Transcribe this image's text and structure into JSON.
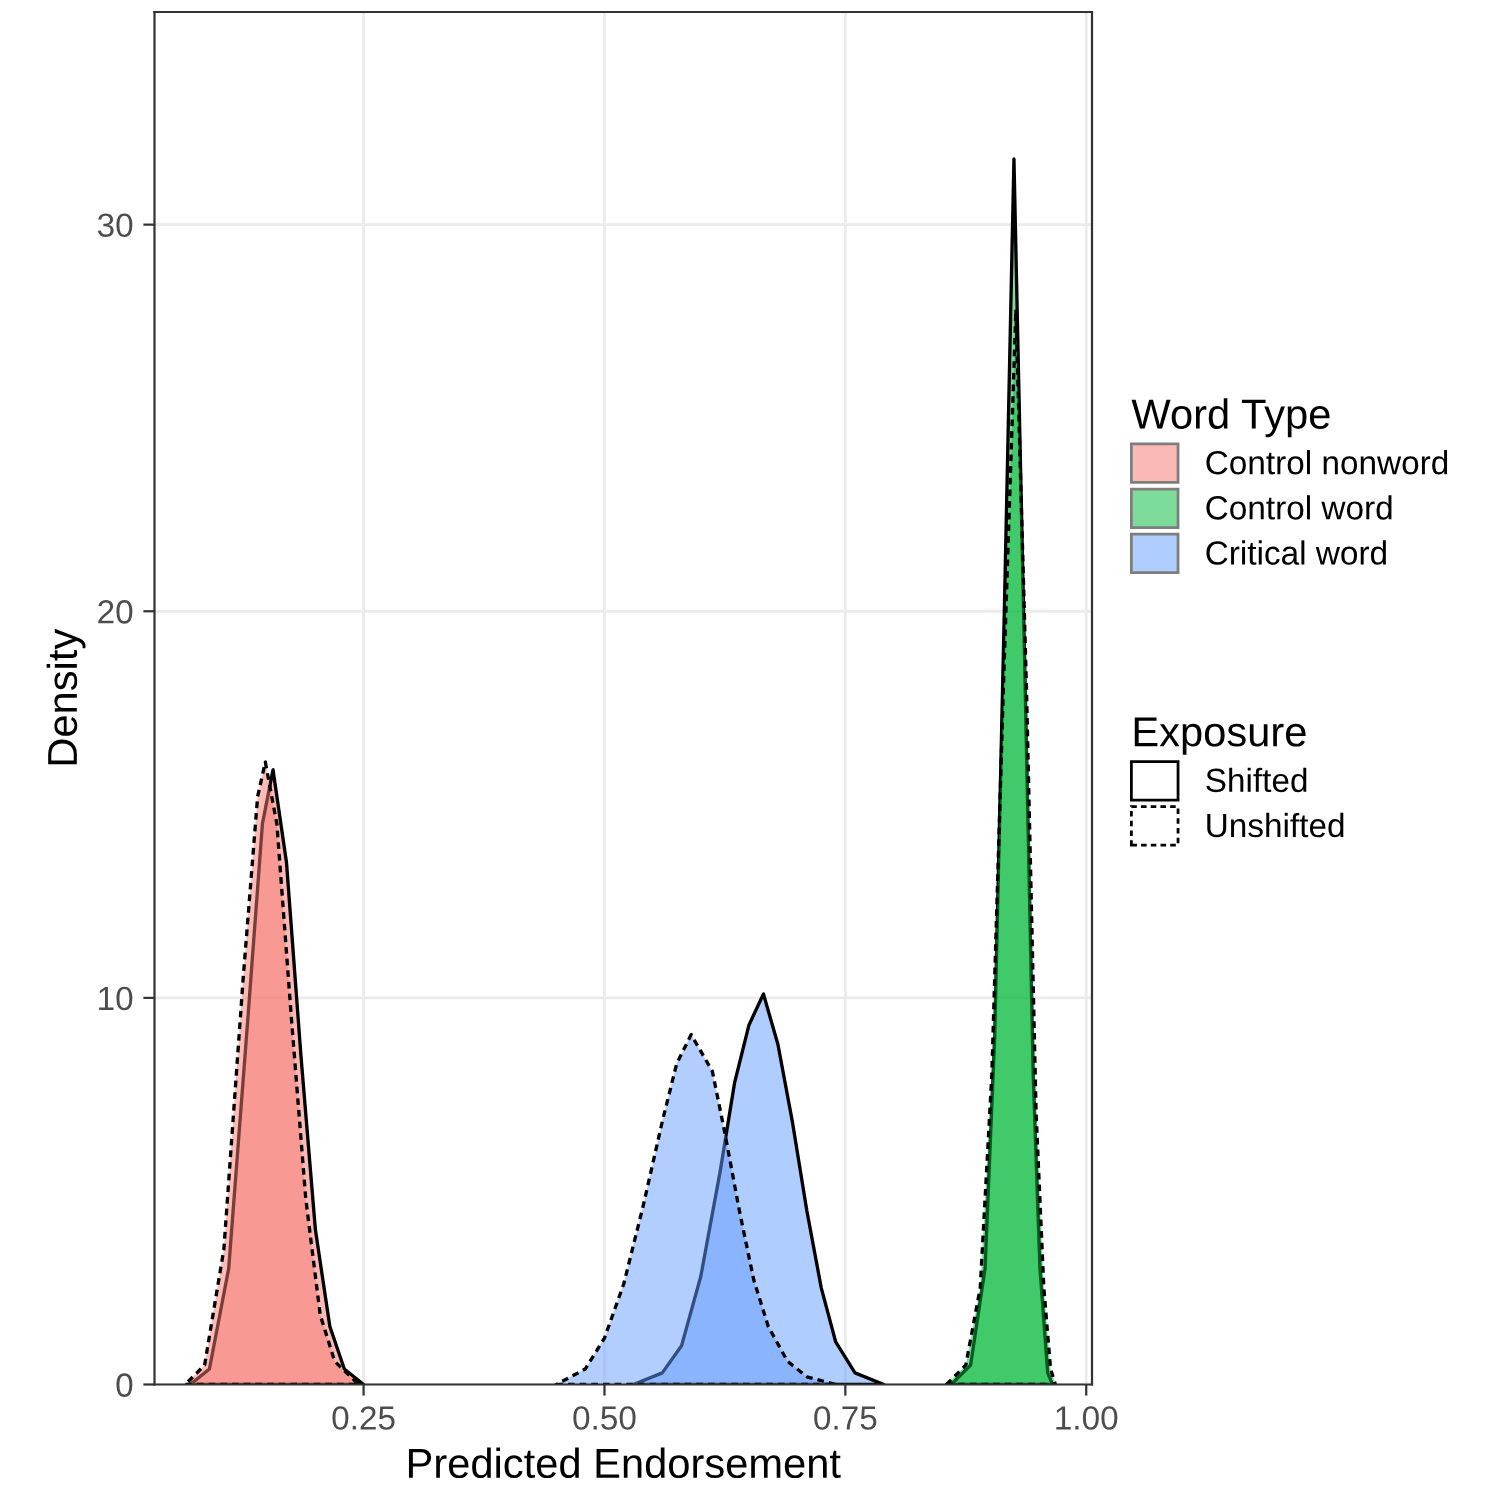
{
  "chart_data": {
    "type": "area",
    "xlabel": "Predicted Endorsement",
    "ylabel": "Density",
    "legend_title": "Word Type",
    "legend": "right",
    "grid": true,
    "xlim": [
      0.033,
      1.006
    ],
    "xticks": [
      {
        "value": 0.25,
        "label": "0.25"
      },
      {
        "value": 0.5,
        "label": "0.50"
      },
      {
        "value": 0.75,
        "label": "0.75"
      },
      {
        "value": 1.0,
        "label": "1.00"
      }
    ],
    "ylim": [
      0,
      35.5
    ],
    "yticks": [
      0,
      10,
      20,
      30
    ],
    "annotations": [
      "Exposure",
      "Shifted",
      "Unshifted"
    ],
    "series": [
      {
        "name": "Control nonword",
        "color": "#f8766d",
        "line_style": "solid",
        "x": [
          0.07,
          0.09,
          0.11,
          0.13,
          0.145,
          0.156,
          0.17,
          0.185,
          0.2,
          0.215,
          0.23,
          0.25
        ],
        "values": [
          0,
          0.4,
          3.0,
          9.5,
          14.5,
          15.9,
          13.5,
          8.5,
          4.0,
          1.5,
          0.4,
          0
        ]
      },
      {
        "color": "#f7786f",
        "line_style": "dashed",
        "x": [
          0.065,
          0.085,
          0.105,
          0.125,
          0.14,
          0.148,
          0.16,
          0.175,
          0.19,
          0.205,
          0.22,
          0.245
        ],
        "values": [
          0,
          0.5,
          3.5,
          10.5,
          15.2,
          16.1,
          14.5,
          9.5,
          4.8,
          1.8,
          0.6,
          0
        ]
      },
      {
        "name": "Control word",
        "color": "#00ba38",
        "line_style": "solid",
        "x": [
          0.86,
          0.88,
          0.895,
          0.905,
          0.915,
          0.925,
          0.935,
          0.945,
          0.952,
          0.96,
          0.965
        ],
        "values": [
          0,
          0.5,
          3,
          9,
          20,
          31.7,
          20,
          8,
          3,
          0.3,
          0
        ]
      },
      {
        "color": "#02b83a",
        "line_style": "dashed",
        "x": [
          0.855,
          0.875,
          0.89,
          0.902,
          0.914,
          0.927,
          0.938,
          0.948,
          0.956,
          0.963,
          0.968
        ],
        "values": [
          0,
          0.5,
          2.5,
          8,
          18,
          27.8,
          18,
          7,
          2.5,
          0.4,
          0
        ]
      },
      {
        "name": "Critical word",
        "color": "#619cff",
        "line_style": "solid",
        "x": [
          0.53,
          0.56,
          0.58,
          0.6,
          0.62,
          0.635,
          0.65,
          0.665,
          0.68,
          0.695,
          0.71,
          0.725,
          0.74,
          0.76,
          0.79
        ],
        "values": [
          0,
          0.3,
          1.0,
          2.8,
          5.5,
          7.8,
          9.3,
          10.1,
          8.8,
          6.8,
          4.5,
          2.5,
          1.1,
          0.3,
          0
        ]
      },
      {
        "color": "#639dfd",
        "line_style": "dashed",
        "x": [
          0.45,
          0.48,
          0.5,
          0.52,
          0.54,
          0.56,
          0.575,
          0.59,
          0.612,
          0.625,
          0.64,
          0.655,
          0.67,
          0.69,
          0.71,
          0.74
        ],
        "values": [
          0,
          0.4,
          1.2,
          2.6,
          4.6,
          6.8,
          8.3,
          9.05,
          8.1,
          6.5,
          4.5,
          2.7,
          1.5,
          0.6,
          0.2,
          0
        ]
      }
    ]
  }
}
